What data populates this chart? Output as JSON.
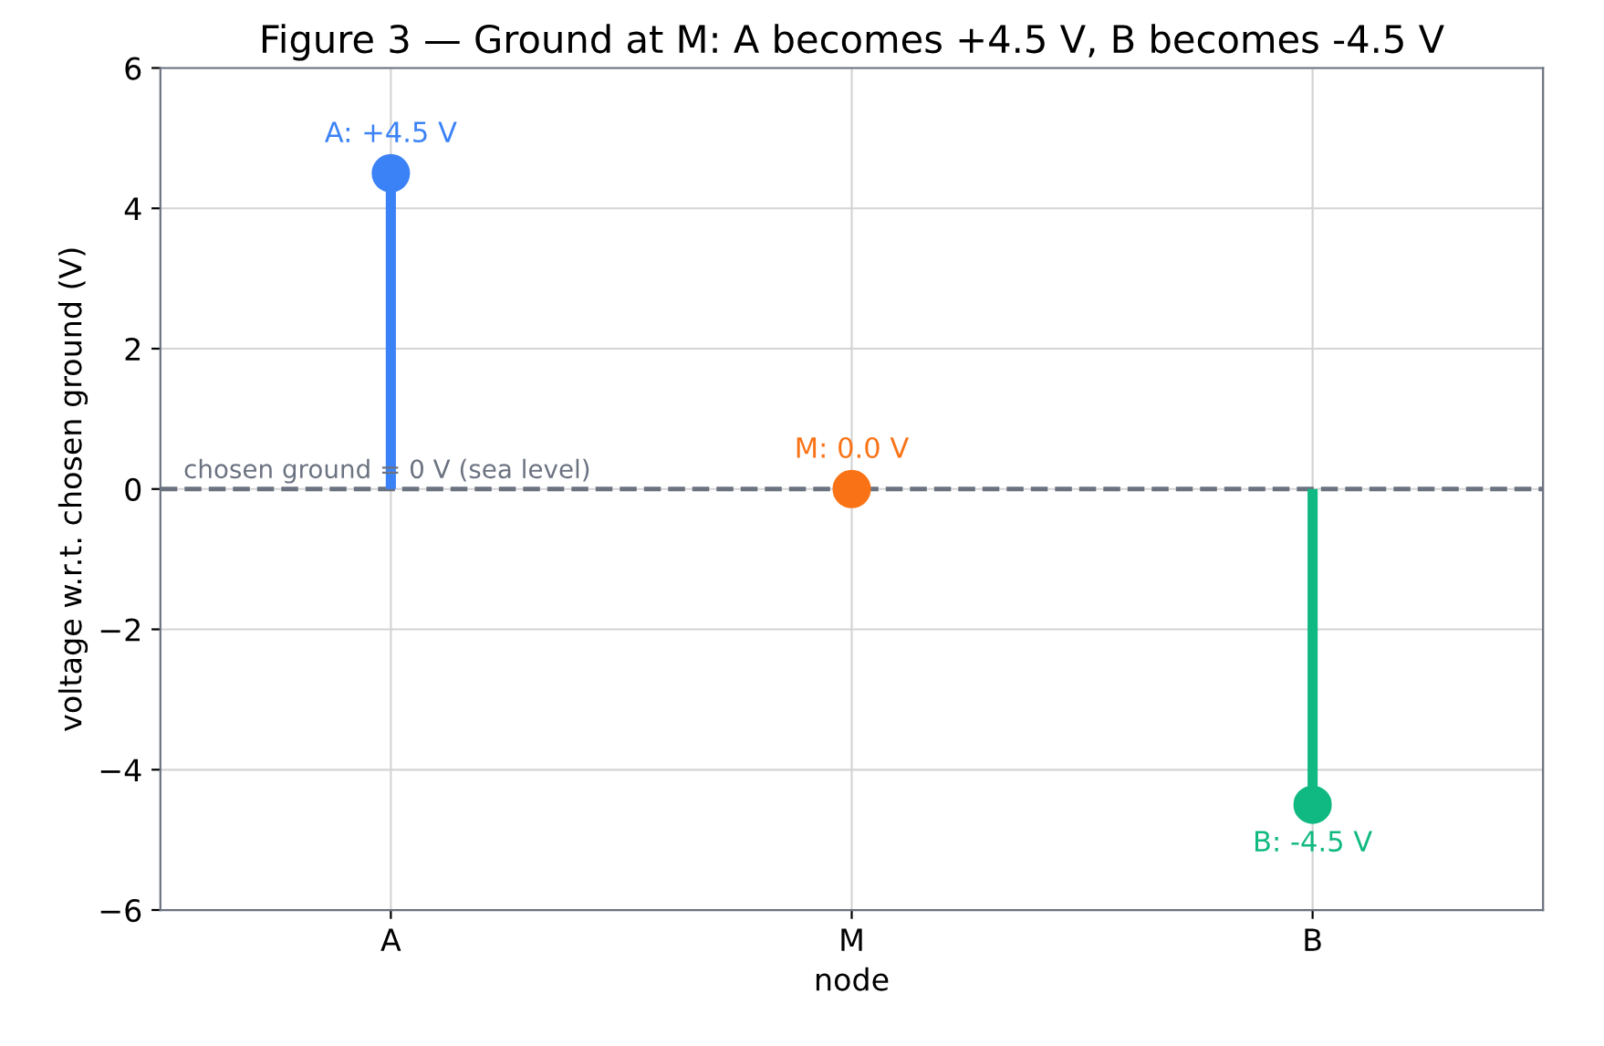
{
  "chart_data": {
    "type": "lollipop",
    "title": "Figure 3 — Ground at M: A becomes +4.5 V, B becomes -4.5 V",
    "xlabel": "node",
    "ylabel": "voltage w.r.t. chosen ground (V)",
    "categories": [
      "A",
      "M",
      "B"
    ],
    "values": [
      4.5,
      0.0,
      -4.5
    ],
    "colors": [
      "#3b82f6",
      "#f97316",
      "#10b981"
    ],
    "value_labels": [
      "A: +4.5 V",
      "M: 0.0 V",
      "B: -4.5 V"
    ],
    "ylim": [
      -6,
      6
    ],
    "yticks": [
      -6,
      -4,
      -2,
      0,
      2,
      4,
      6
    ],
    "ref_lines": [
      {
        "axis": "y",
        "value": 0,
        "label": "chosen ground = 0 V (sea level)",
        "color": "#6b7280",
        "line_style": "dashed"
      }
    ],
    "grid": true,
    "marker": "circle"
  }
}
